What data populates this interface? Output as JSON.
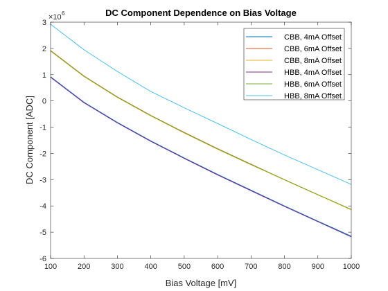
{
  "chart_data": {
    "type": "line",
    "title": "DC Component Dependence on Bias Voltage",
    "xlabel": "Bias Voltage [mV]",
    "ylabel": "DC Component [ADC]",
    "y_exponent_base": "×10",
    "y_exponent_power": "6",
    "xlim": [
      100,
      1000
    ],
    "ylim": [
      -6,
      3
    ],
    "xticks": [
      100,
      200,
      300,
      400,
      500,
      600,
      700,
      800,
      900,
      1000
    ],
    "yticks": [
      -6,
      -5,
      -4,
      -3,
      -2,
      -1,
      0,
      1,
      2,
      3
    ],
    "x": [
      100,
      200,
      300,
      400,
      500,
      600,
      700,
      800,
      900,
      1000
    ],
    "legend_location": "top-right",
    "series": [
      {
        "name": "CBB, 4mA Offset",
        "color": "#0072BD",
        "values": [
          0.92,
          -0.05,
          -0.82,
          -1.52,
          -2.17,
          -2.8,
          -3.4,
          -4.0,
          -4.58,
          -5.15
        ]
      },
      {
        "name": "CBB, 6mA Offset",
        "color": "#D95319",
        "values": [
          1.92,
          0.95,
          0.15,
          -0.55,
          -1.2,
          -1.82,
          -2.41,
          -3.0,
          -3.57,
          -4.14
        ]
      },
      {
        "name": "CBB, 8mA Offset",
        "color": "#EDB120",
        "values": [
          1.9,
          0.93,
          0.13,
          -0.57,
          -1.22,
          -1.84,
          -2.43,
          -3.01,
          -3.58,
          -4.15
        ]
      },
      {
        "name": "HBB, 4mA Offset",
        "color": "#7E2F8E",
        "values": [
          0.9,
          -0.07,
          -0.84,
          -1.54,
          -2.19,
          -2.82,
          -3.42,
          -4.02,
          -4.6,
          -5.18
        ]
      },
      {
        "name": "HBB, 6mA Offset",
        "color": "#77AC30",
        "values": [
          1.91,
          0.94,
          0.14,
          -0.56,
          -1.21,
          -1.83,
          -2.42,
          -3.0,
          -3.57,
          -4.13
        ]
      },
      {
        "name": "HBB, 8mA Offset",
        "color": "#4DBEEE",
        "values": [
          2.92,
          1.95,
          1.12,
          0.36,
          -0.26,
          -0.86,
          -1.47,
          -2.06,
          -2.62,
          -3.18
        ]
      }
    ]
  }
}
